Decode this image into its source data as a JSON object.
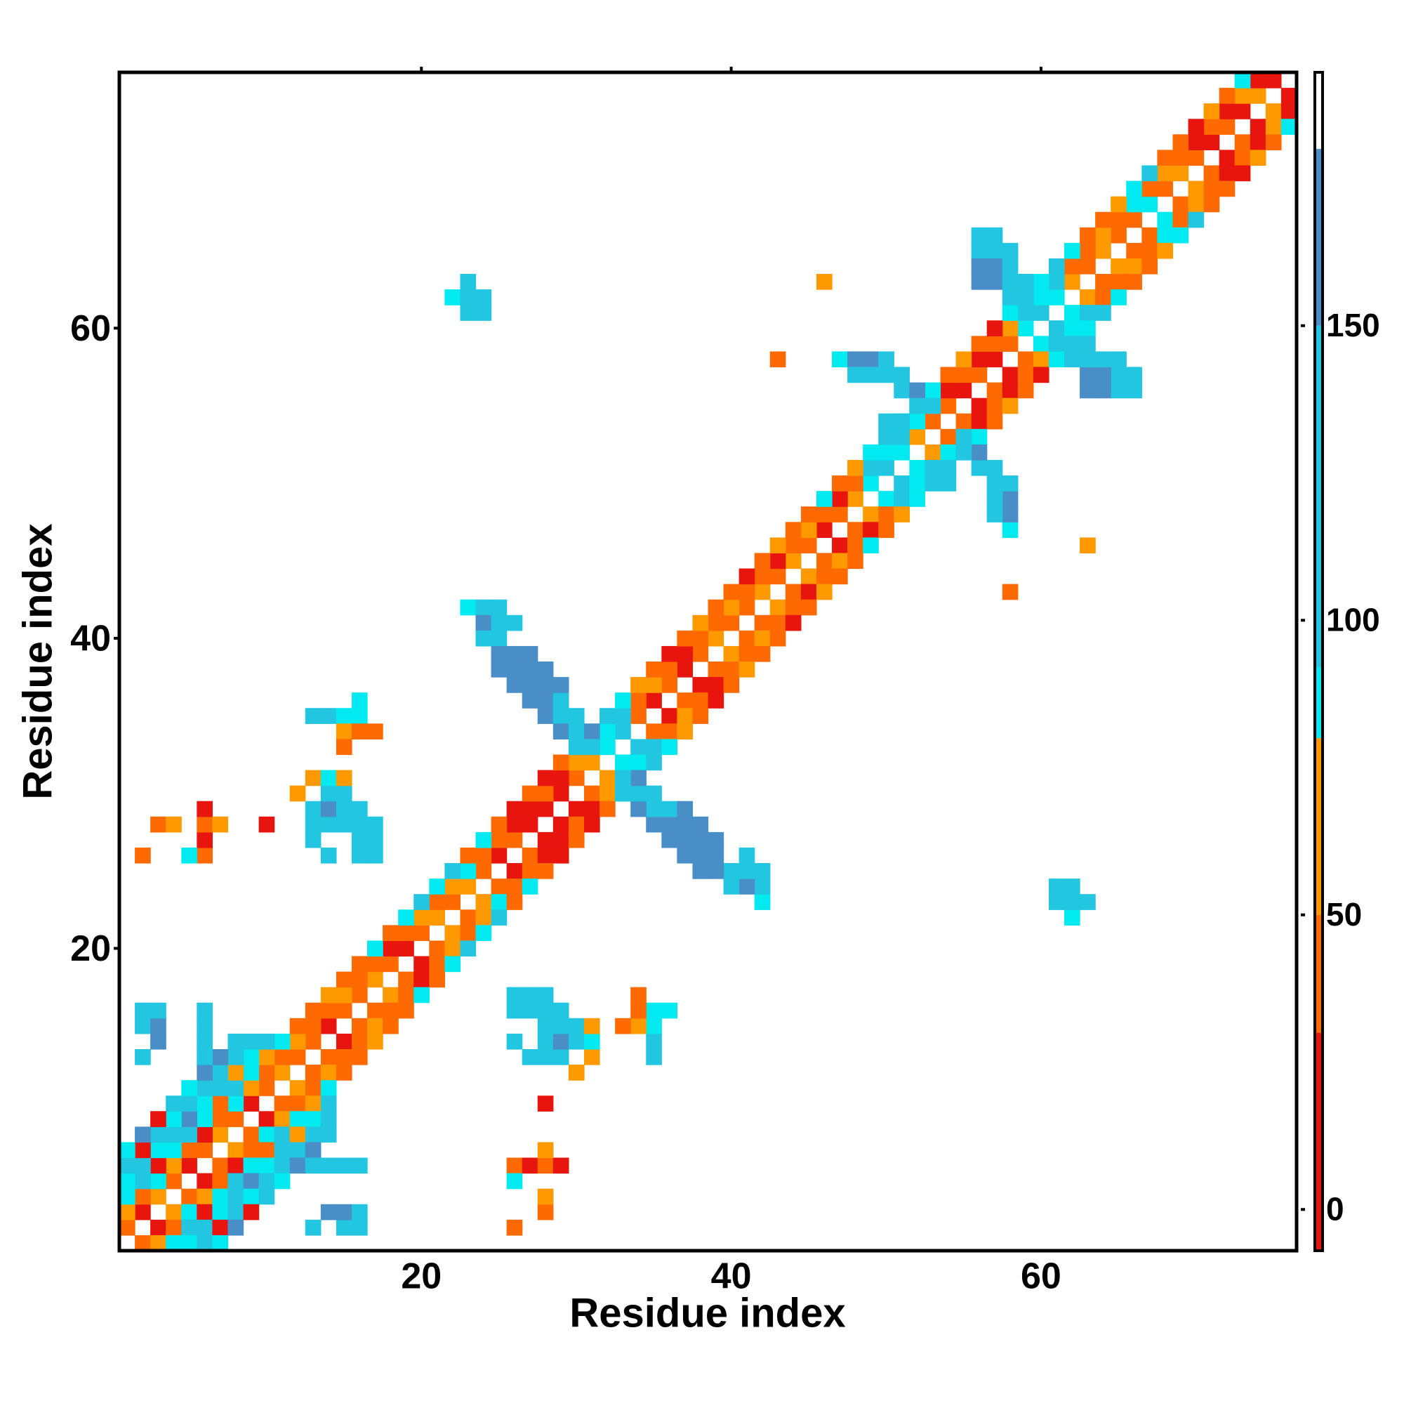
{
  "chart_data": {
    "type": "heatmap",
    "x_label": "Residue index",
    "y_label": "Residue index",
    "xlim": [
      0.5,
      76.5
    ],
    "ylim": [
      0.5,
      76.5
    ],
    "xticks": [
      20,
      40,
      60
    ],
    "yticks": [
      20,
      40,
      60
    ],
    "symmetric": true,
    "colorbar": {
      "bounds": [
        -7,
        30,
        50,
        80,
        92,
        150,
        180,
        193
      ],
      "colors": [
        "#e8140e",
        "#ff6a00",
        "#ff9900",
        "#00eaf0",
        "#22c6e0",
        "#4a8ec8",
        "#ffffff"
      ],
      "ticks": [
        0,
        50,
        100,
        150
      ]
    },
    "band": [
      {
        "offset": 1,
        "values": [
          40,
          15,
          65,
          40,
          15,
          40,
          65,
          40,
          15,
          40,
          65,
          40,
          40,
          15,
          40,
          40,
          65,
          40,
          15,
          40,
          65,
          40,
          65,
          40,
          15,
          40,
          15,
          15,
          15,
          40,
          65,
          88,
          110,
          40,
          15,
          40,
          15,
          40,
          65,
          40,
          40,
          65,
          40,
          65,
          40,
          15,
          40,
          65,
          88,
          110,
          88,
          65,
          40,
          40,
          15,
          40,
          15,
          40,
          88,
          110,
          88,
          65,
          40,
          65,
          40,
          40,
          88,
          40,
          65,
          40,
          15,
          40,
          15,
          65,
          15
        ]
      },
      {
        "offset": 2,
        "values": [
          65,
          40,
          88,
          65,
          40,
          15,
          40,
          88,
          65,
          40,
          40,
          65,
          40,
          40,
          65,
          40,
          40,
          15,
          40,
          65,
          40,
          65,
          88,
          40,
          40,
          15,
          15,
          40,
          15,
          65,
          110,
          88,
          110,
          40,
          65,
          40,
          15,
          40,
          40,
          65,
          40,
          40,
          15,
          40,
          65,
          40,
          15,
          40,
          110,
          88,
          110,
          88,
          65,
          15,
          40,
          15,
          40,
          65,
          110,
          88,
          110,
          40,
          40,
          65,
          40,
          88,
          40,
          65,
          40,
          15,
          40,
          15,
          65,
          15
        ]
      },
      {
        "offset": 3,
        "values": [
          88,
          110,
          15,
          88,
          110,
          88,
          40,
          110,
          88,
          65,
          88,
          40,
          40,
          65,
          40,
          40,
          88,
          40,
          88,
          110,
          88,
          110,
          40,
          88,
          40,
          15,
          40,
          15,
          40,
          88,
          88,
          110,
          88,
          65,
          40,
          15,
          40,
          65,
          40,
          40,
          15,
          40,
          65,
          40,
          40,
          88,
          40,
          65,
          88,
          110,
          88,
          110,
          88,
          40,
          65,
          40,
          15,
          88,
          110,
          88,
          110,
          88,
          40,
          40,
          65,
          88,
          110,
          40,
          40,
          15,
          65,
          40,
          88
        ]
      }
    ],
    "cells": [
      [
        1,
        5,
        88
      ],
      [
        2,
        6,
        110
      ],
      [
        3,
        7,
        88
      ],
      [
        1,
        6,
        110
      ],
      [
        2,
        7,
        15
      ],
      [
        4,
        8,
        110
      ],
      [
        3,
        8,
        110
      ],
      [
        5,
        9,
        160
      ],
      [
        4,
        9,
        88
      ],
      [
        6,
        10,
        88
      ],
      [
        5,
        10,
        110
      ],
      [
        7,
        11,
        110
      ],
      [
        6,
        11,
        110
      ],
      [
        8,
        12,
        65
      ],
      [
        7,
        12,
        110
      ],
      [
        9,
        13,
        88
      ],
      [
        8,
        13,
        110
      ],
      [
        10,
        14,
        110
      ],
      [
        9,
        14,
        110
      ],
      [
        1,
        7,
        88
      ],
      [
        4,
        10,
        110
      ],
      [
        6,
        12,
        160
      ],
      [
        8,
        14,
        110
      ],
      [
        3,
        9,
        15
      ],
      [
        5,
        11,
        88
      ],
      [
        7,
        13,
        160
      ],
      [
        2,
        8,
        160
      ],
      [
        2,
        13,
        110
      ],
      [
        3,
        14,
        160
      ],
      [
        2,
        15,
        110
      ],
      [
        3,
        15,
        160
      ],
      [
        2,
        16,
        110
      ],
      [
        3,
        16,
        110
      ],
      [
        6,
        15,
        110
      ],
      [
        6,
        14,
        110
      ],
      [
        6,
        16,
        110
      ],
      [
        6,
        13,
        110
      ],
      [
        2,
        26,
        40
      ],
      [
        3,
        28,
        40
      ],
      [
        4,
        28,
        65
      ],
      [
        6,
        26,
        40
      ],
      [
        6,
        27,
        15
      ],
      [
        6,
        28,
        40
      ],
      [
        6,
        29,
        15
      ],
      [
        5,
        26,
        88
      ],
      [
        7,
        28,
        65
      ],
      [
        10,
        28,
        15
      ],
      [
        13,
        28,
        110
      ],
      [
        14,
        28,
        110
      ],
      [
        15,
        28,
        110
      ],
      [
        16,
        28,
        110
      ],
      [
        13,
        29,
        110
      ],
      [
        14,
        29,
        160
      ],
      [
        15,
        29,
        110
      ],
      [
        16,
        29,
        110
      ],
      [
        14,
        30,
        110
      ],
      [
        15,
        30,
        110
      ],
      [
        13,
        27,
        110
      ],
      [
        16,
        27,
        110
      ],
      [
        17,
        27,
        110
      ],
      [
        17,
        28,
        110
      ],
      [
        14,
        26,
        110
      ],
      [
        16,
        26,
        110
      ],
      [
        17,
        26,
        110
      ],
      [
        12,
        30,
        65
      ],
      [
        13,
        31,
        65
      ],
      [
        14,
        31,
        88
      ],
      [
        15,
        31,
        65
      ],
      [
        14,
        35,
        110
      ],
      [
        13,
        35,
        110
      ],
      [
        15,
        35,
        88
      ],
      [
        16,
        35,
        88
      ],
      [
        16,
        36,
        88
      ],
      [
        15,
        34,
        65
      ],
      [
        16,
        34,
        40
      ],
      [
        17,
        34,
        40
      ],
      [
        15,
        33,
        40
      ],
      [
        22,
        62,
        88
      ],
      [
        23,
        62,
        110
      ],
      [
        23,
        63,
        110
      ],
      [
        24,
        62,
        110
      ],
      [
        23,
        61,
        110
      ],
      [
        24,
        61,
        110
      ],
      [
        46,
        63,
        65
      ],
      [
        43,
        58,
        40
      ],
      [
        23,
        42,
        88
      ],
      [
        24,
        42,
        110
      ],
      [
        25,
        42,
        110
      ],
      [
        24,
        41,
        160
      ],
      [
        25,
        41,
        110
      ],
      [
        26,
        41,
        110
      ],
      [
        24,
        40,
        110
      ],
      [
        25,
        40,
        110
      ],
      [
        25,
        39,
        160
      ],
      [
        26,
        39,
        160
      ],
      [
        26,
        38,
        160
      ],
      [
        27,
        38,
        160
      ],
      [
        25,
        38,
        160
      ],
      [
        26,
        37,
        160
      ],
      [
        27,
        37,
        160
      ],
      [
        28,
        37,
        160
      ],
      [
        27,
        36,
        160
      ],
      [
        28,
        36,
        160
      ],
      [
        29,
        36,
        110
      ],
      [
        28,
        35,
        160
      ],
      [
        29,
        35,
        110
      ],
      [
        30,
        35,
        110
      ],
      [
        29,
        34,
        160
      ],
      [
        30,
        34,
        110
      ],
      [
        31,
        34,
        160
      ],
      [
        30,
        33,
        110
      ],
      [
        31,
        33,
        110
      ],
      [
        27,
        39,
        160
      ],
      [
        28,
        38,
        160
      ],
      [
        29,
        37,
        160
      ],
      [
        47,
        58,
        88
      ],
      [
        48,
        58,
        160
      ],
      [
        49,
        58,
        160
      ],
      [
        50,
        58,
        110
      ],
      [
        49,
        57,
        110
      ],
      [
        50,
        57,
        110
      ],
      [
        51,
        57,
        110
      ],
      [
        51,
        56,
        110
      ],
      [
        52,
        56,
        160
      ],
      [
        52,
        55,
        110
      ],
      [
        53,
        55,
        110
      ],
      [
        51,
        54,
        110
      ],
      [
        50,
        54,
        110
      ],
      [
        48,
        57,
        110
      ],
      [
        56,
        66,
        110
      ],
      [
        57,
        66,
        110
      ],
      [
        56,
        65,
        110
      ],
      [
        57,
        65,
        110
      ],
      [
        58,
        65,
        110
      ],
      [
        56,
        64,
        160
      ],
      [
        57,
        64,
        160
      ],
      [
        58,
        64,
        110
      ],
      [
        56,
        63,
        160
      ],
      [
        57,
        63,
        160
      ],
      [
        58,
        63,
        110
      ],
      [
        59,
        63,
        110
      ],
      [
        58,
        62,
        110
      ],
      [
        59,
        62,
        110
      ]
    ]
  }
}
